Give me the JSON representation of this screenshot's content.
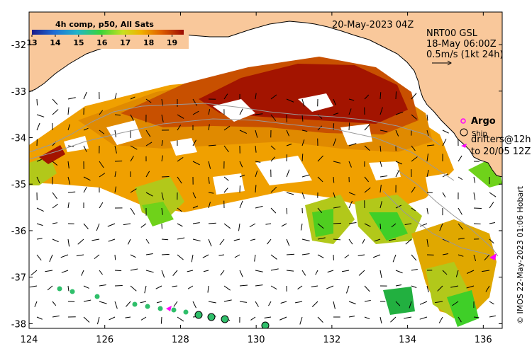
{
  "header": {
    "date_label": "20-May-2023 04Z",
    "product_lines": [
      "NRT00 GSL",
      "18-May 06:00Z",
      "0.5m/s (1kt 24h)"
    ]
  },
  "colorbar": {
    "title": "4h comp, p50, All Sats",
    "ticks": [
      "13",
      "14",
      "15",
      "16",
      "17",
      "18",
      "19"
    ],
    "range": [
      13,
      19.5
    ]
  },
  "legend": {
    "argo_label": "Argo",
    "ship_label": "Ship",
    "drifters_label_1": "drifters@12h",
    "drifters_label_2": "to 20/05 12Z"
  },
  "axes": {
    "x_ticks": [
      "124",
      "126",
      "128",
      "130",
      "132",
      "134",
      "136"
    ],
    "y_ticks": [
      "-32",
      "-33",
      "-34",
      "-35",
      "-36",
      "-37",
      "-38"
    ],
    "lon_range": [
      124,
      136.5
    ],
    "lat_range": [
      -38.1,
      -31.3
    ]
  },
  "credit": "© IMOS 22-May-2023 01:06 Hobart",
  "colors": {
    "land": "#f9c89b",
    "sst_low": "#2a2a9a",
    "sst_high": "#9b0a00",
    "argo": "#ff00ff",
    "drifter": "#ff00ff"
  }
}
